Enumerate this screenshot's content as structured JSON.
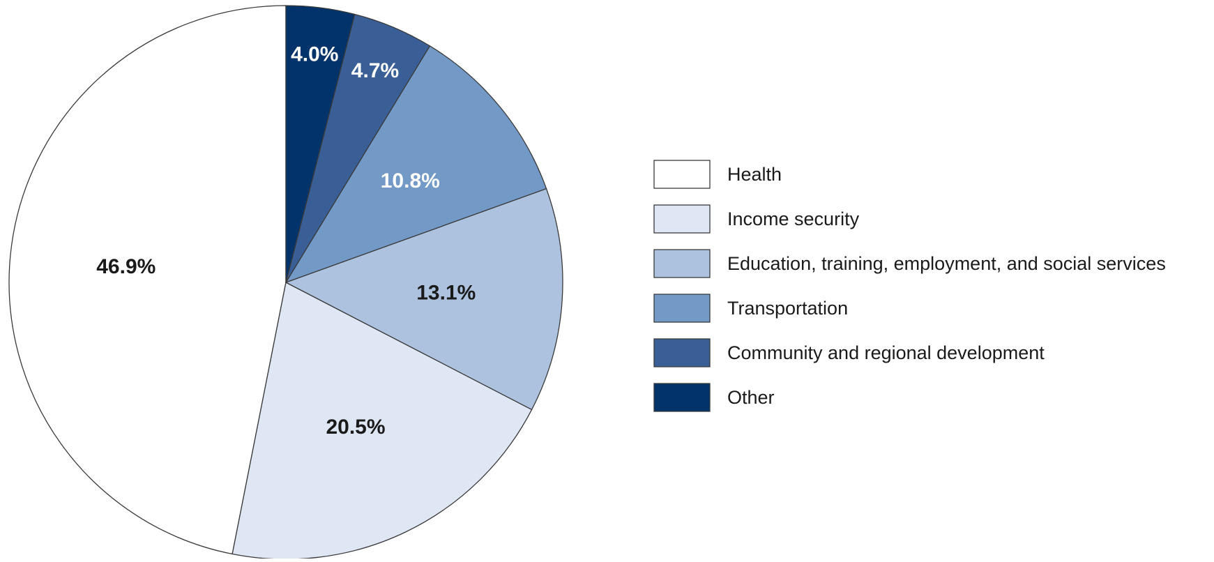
{
  "chart_data": {
    "type": "pie",
    "title": "",
    "legend_position": "right",
    "start_angle_deg": 0,
    "direction": "counterclockwise",
    "slices": [
      {
        "label": "Health",
        "value": 46.9,
        "display": "46.9%",
        "color": "#ffffff",
        "label_color": "#1a1a1a"
      },
      {
        "label": "Income security",
        "value": 20.5,
        "display": "20.5%",
        "color": "#dfe6f4",
        "label_color": "#1a1a1a"
      },
      {
        "label": "Education, training, employment, and social services",
        "value": 13.1,
        "display": "13.1%",
        "color": "#adc2df",
        "label_color": "#1a1a1a"
      },
      {
        "label": "Transportation",
        "value": 10.8,
        "display": "10.8%",
        "color": "#7399c7",
        "label_color": "#ffffff"
      },
      {
        "label": "Community and regional development",
        "value": 4.7,
        "display": "4.7%",
        "color": "#3a5f96",
        "label_color": "#ffffff"
      },
      {
        "label": "Other",
        "value": 4.0,
        "display": "4.0%",
        "color": "#03336b",
        "label_color": "#ffffff"
      }
    ],
    "legend_order": [
      "Health",
      "Income security",
      "Education, training, employment, and social services",
      "Transportation",
      "Community and regional development",
      "Other"
    ]
  }
}
